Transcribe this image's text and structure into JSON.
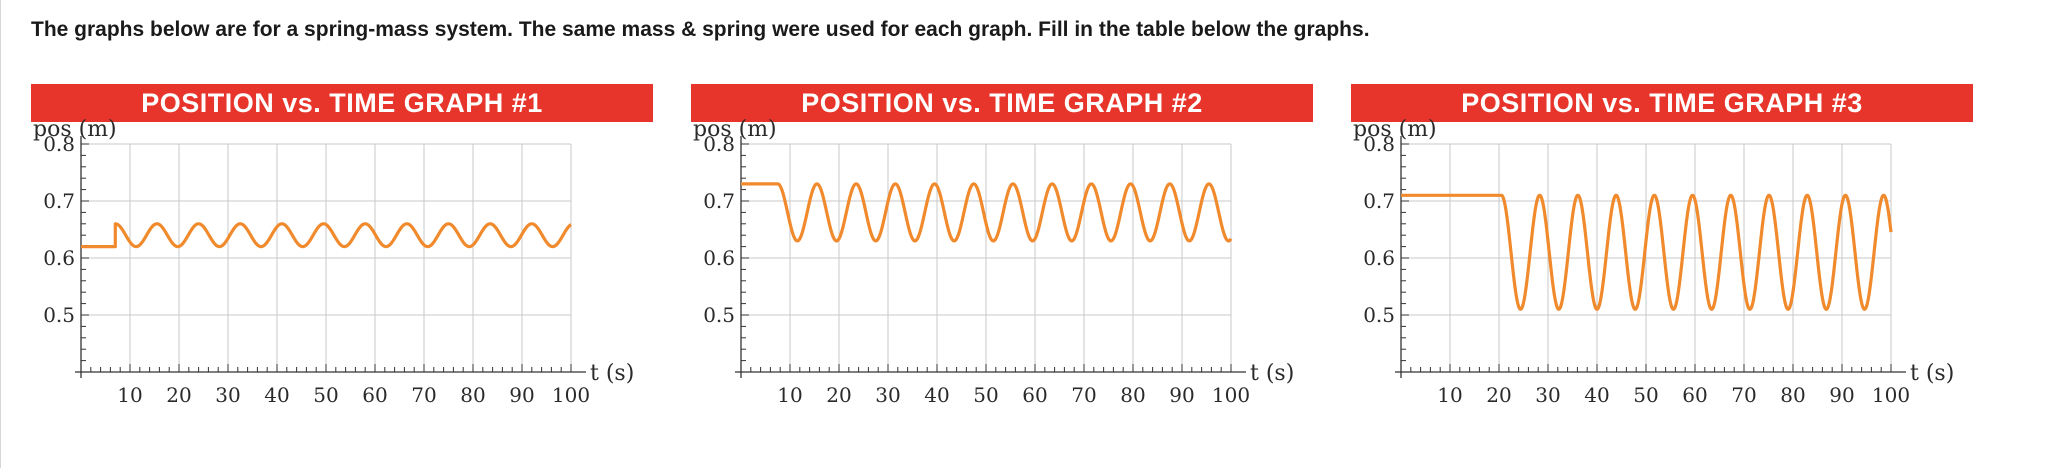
{
  "instructions": "The graphs below are for a spring-mass system. The same mass & spring were used for each graph. Fill in the table below the graphs.",
  "colors": {
    "title_bg": "#e8352b",
    "curve": "#f08a2c",
    "grid": "#c8c8c8",
    "axis": "#333333"
  },
  "chart_data": [
    {
      "type": "line",
      "title": "POSITION vs. TIME GRAPH #1",
      "ylabel": "pos (m)",
      "xlabel": "t (s)",
      "xlim": [
        0,
        100
      ],
      "ylim": [
        0.4,
        0.8
      ],
      "x_ticks": [
        10,
        20,
        30,
        40,
        50,
        60,
        70,
        80,
        90,
        100
      ],
      "y_ticks": [
        0.5,
        0.6,
        0.7,
        0.8
      ],
      "y_tick_labels": [
        "0.5",
        "0.6",
        "0.7",
        "0.8"
      ],
      "grid": true,
      "series": [
        {
          "equilibrium": 0.64,
          "amplitude": 0.02,
          "period": 8.5,
          "start_time": 7,
          "initial_position": 0.62
        }
      ]
    },
    {
      "type": "line",
      "title": "POSITION vs. TIME GRAPH #2",
      "ylabel": "pos (m)",
      "xlabel": "t (s)",
      "xlim": [
        0,
        100
      ],
      "ylim": [
        0.4,
        0.8
      ],
      "x_ticks": [
        10,
        20,
        30,
        40,
        50,
        60,
        70,
        80,
        90,
        100
      ],
      "y_ticks": [
        0.5,
        0.6,
        0.7,
        0.8
      ],
      "y_tick_labels": [
        "0.5",
        "0.6",
        "0.7",
        "0.8"
      ],
      "grid": true,
      "series": [
        {
          "equilibrium": 0.68,
          "amplitude": 0.05,
          "period": 8,
          "start_time": 7.5,
          "initial_position": 0.73
        }
      ]
    },
    {
      "type": "line",
      "title": "POSITION vs. TIME GRAPH #3",
      "ylabel": "pos (m)",
      "xlabel": "t (s)",
      "xlim": [
        0,
        100
      ],
      "ylim": [
        0.4,
        0.8
      ],
      "x_ticks": [
        10,
        20,
        30,
        40,
        50,
        60,
        70,
        80,
        90,
        100
      ],
      "y_ticks": [
        0.5,
        0.6,
        0.7,
        0.8
      ],
      "y_tick_labels": [
        "0.5",
        "0.6",
        "0.7",
        "0.8"
      ],
      "grid": true,
      "series": [
        {
          "equilibrium": 0.61,
          "amplitude": 0.1,
          "period": 7.8,
          "start_time": 20.5,
          "initial_position": 0.71
        }
      ]
    }
  ]
}
